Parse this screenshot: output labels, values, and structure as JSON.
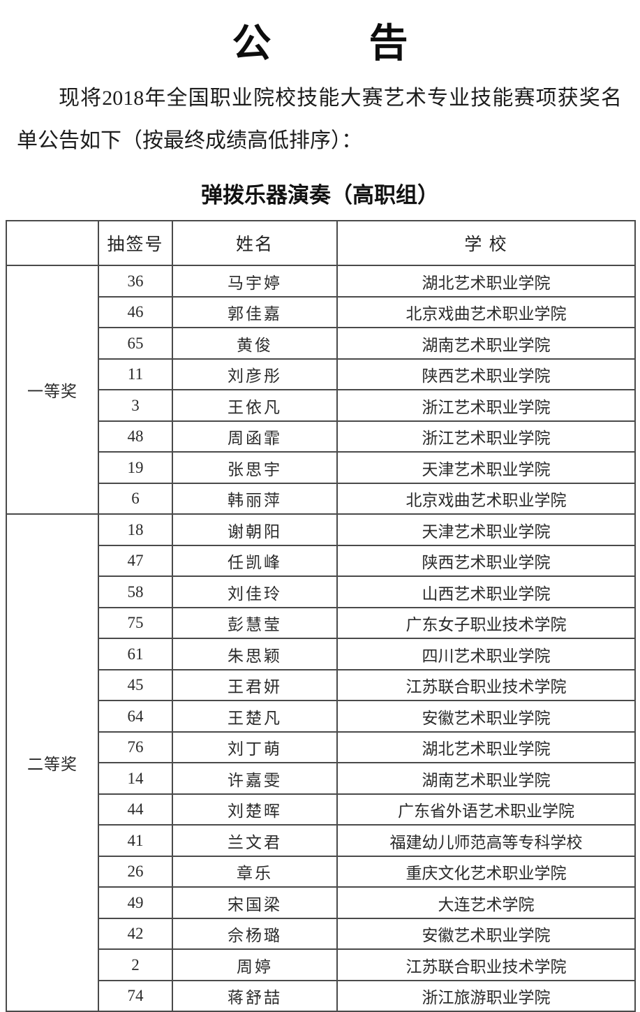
{
  "page": {
    "title": "公告",
    "intro": "现将2018年全国职业院校技能大赛艺术专业技能赛项获奖名单公告如下（按最终成绩高低排序）：",
    "section_title": "弹拨乐器演奏（高职组）"
  },
  "colors": {
    "background": "#ffffff",
    "text": "#1c1c1c",
    "border": "#4a4a4a"
  },
  "table": {
    "headers": {
      "draw": "抽签号",
      "name": "姓名",
      "school": "学 校"
    },
    "groups": [
      {
        "prize": "一等奖",
        "rows": [
          {
            "draw": "36",
            "name": "马宇婷",
            "school": "湖北艺术职业学院"
          },
          {
            "draw": "46",
            "name": "郭佳嘉",
            "school": "北京戏曲艺术职业学院"
          },
          {
            "draw": "65",
            "name": "黄俊",
            "school": "湖南艺术职业学院"
          },
          {
            "draw": "11",
            "name": "刘彦彤",
            "school": "陕西艺术职业学院"
          },
          {
            "draw": "3",
            "name": "王依凡",
            "school": "浙江艺术职业学院"
          },
          {
            "draw": "48",
            "name": "周函霏",
            "school": "浙江艺术职业学院"
          },
          {
            "draw": "19",
            "name": "张思宇",
            "school": "天津艺术职业学院"
          },
          {
            "draw": "6",
            "name": "韩丽萍",
            "school": "北京戏曲艺术职业学院"
          }
        ]
      },
      {
        "prize": "二等奖",
        "rows": [
          {
            "draw": "18",
            "name": "谢朝阳",
            "school": "天津艺术职业学院"
          },
          {
            "draw": "47",
            "name": "任凯峰",
            "school": "陕西艺术职业学院"
          },
          {
            "draw": "58",
            "name": "刘佳玲",
            "school": "山西艺术职业学院"
          },
          {
            "draw": "75",
            "name": "彭慧莹",
            "school": "广东女子职业技术学院"
          },
          {
            "draw": "61",
            "name": "朱思颖",
            "school": "四川艺术职业学院"
          },
          {
            "draw": "45",
            "name": "王君妍",
            "school": "江苏联合职业技术学院"
          },
          {
            "draw": "64",
            "name": "王楚凡",
            "school": "安徽艺术职业学院"
          },
          {
            "draw": "76",
            "name": "刘丁萌",
            "school": "湖北艺术职业学院"
          },
          {
            "draw": "14",
            "name": "许嘉雯",
            "school": "湖南艺术职业学院"
          },
          {
            "draw": "44",
            "name": "刘楚晖",
            "school": "广东省外语艺术职业学院"
          },
          {
            "draw": "41",
            "name": "兰文君",
            "school": "福建幼儿师范高等专科学校"
          },
          {
            "draw": "26",
            "name": "章乐",
            "school": "重庆文化艺术职业学院"
          },
          {
            "draw": "49",
            "name": "宋国梁",
            "school": "大连艺术学院"
          },
          {
            "draw": "42",
            "name": "佘杨璐",
            "school": "安徽艺术职业学院"
          },
          {
            "draw": "2",
            "name": "周婷",
            "school": "江苏联合职业技术学院"
          },
          {
            "draw": "74",
            "name": "蒋舒喆",
            "school": "浙江旅游职业学院"
          }
        ]
      }
    ]
  }
}
